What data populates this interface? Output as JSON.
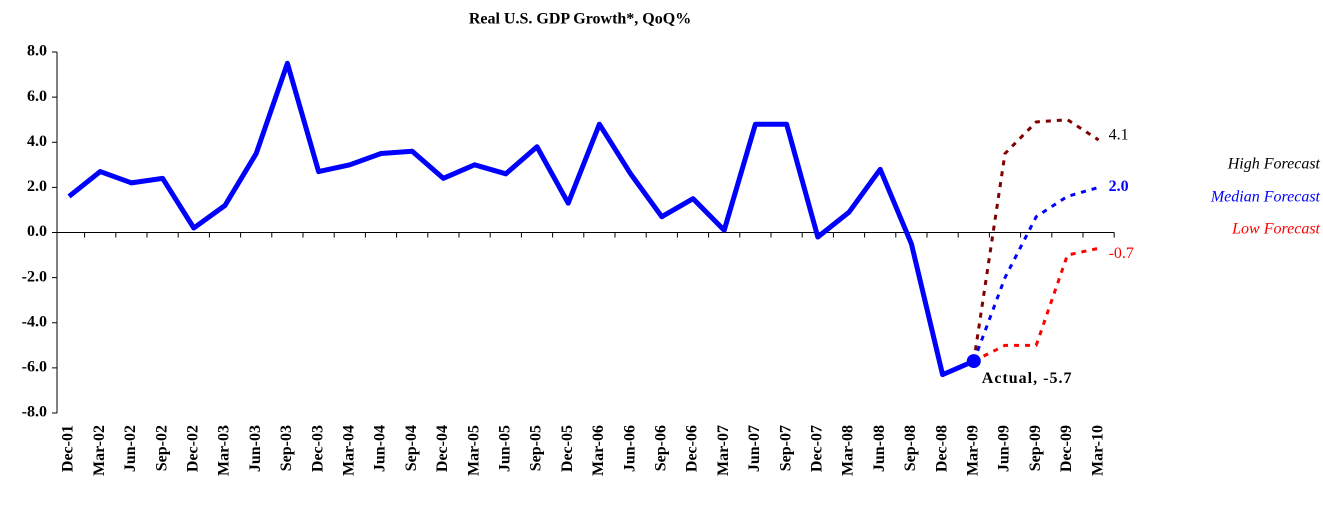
{
  "chart_data": {
    "type": "line",
    "title": "Real U.S. GDP Growth*, QoQ%",
    "categories": [
      "Dec-01",
      "Mar-02",
      "Jun-02",
      "Sep-02",
      "Dec-02",
      "Mar-03",
      "Jun-03",
      "Sep-03",
      "Dec-03",
      "Mar-04",
      "Jun-04",
      "Sep-04",
      "Dec-04",
      "Mar-05",
      "Jun-05",
      "Sep-05",
      "Dec-05",
      "Mar-06",
      "Jun-06",
      "Sep-06",
      "Dec-06",
      "Mar-07",
      "Jun-07",
      "Sep-07",
      "Dec-07",
      "Mar-08",
      "Jun-08",
      "Sep-08",
      "Dec-08",
      "Mar-09",
      "Jun-09",
      "Sep-09",
      "Dec-09",
      "Mar-10"
    ],
    "series": [
      {
        "color": "#0000ff",
        "style": "solid",
        "values": [
          1.6,
          2.7,
          2.2,
          2.4,
          0.2,
          1.2,
          3.5,
          7.5,
          2.7,
          3.0,
          3.5,
          3.6,
          2.4,
          3.0,
          2.6,
          3.8,
          1.3,
          4.8,
          2.6,
          0.7,
          1.5,
          0.1,
          4.8,
          4.8,
          -0.2,
          0.9,
          2.8,
          -0.5,
          -6.3,
          -5.7,
          null,
          null,
          null,
          null
        ]
      },
      {
        "name": "High Forecast",
        "color": "#800000",
        "style": "dotted",
        "values": [
          null,
          null,
          null,
          null,
          null,
          null,
          null,
          null,
          null,
          null,
          null,
          null,
          null,
          null,
          null,
          null,
          null,
          null,
          null,
          null,
          null,
          null,
          null,
          null,
          null,
          null,
          null,
          null,
          null,
          -5.7,
          3.5,
          4.9,
          5.0,
          4.1
        ],
        "value_labels": [
          null,
          null,
          null,
          null,
          null,
          null,
          null,
          null,
          null,
          null,
          null,
          null,
          null,
          null,
          null,
          null,
          null,
          null,
          null,
          null,
          null,
          null,
          null,
          null,
          null,
          null,
          null,
          null,
          null,
          null,
          null,
          null,
          null,
          "4.1"
        ]
      },
      {
        "name": "Median Forecast",
        "color": "#0000ff",
        "style": "dotted",
        "values": [
          null,
          null,
          null,
          null,
          null,
          null,
          null,
          null,
          null,
          null,
          null,
          null,
          null,
          null,
          null,
          null,
          null,
          null,
          null,
          null,
          null,
          null,
          null,
          null,
          null,
          null,
          null,
          null,
          null,
          -5.7,
          -2.0,
          0.7,
          1.6,
          2.0
        ],
        "value_labels": [
          null,
          null,
          null,
          null,
          null,
          null,
          null,
          null,
          null,
          null,
          null,
          null,
          null,
          null,
          null,
          null,
          null,
          null,
          null,
          null,
          null,
          null,
          null,
          null,
          null,
          null,
          null,
          null,
          null,
          null,
          null,
          null,
          null,
          "2.0"
        ]
      },
      {
        "name": "Low Forecast",
        "color": "#ff0000",
        "style": "dotted",
        "values": [
          null,
          null,
          null,
          null,
          null,
          null,
          null,
          null,
          null,
          null,
          null,
          null,
          null,
          null,
          null,
          null,
          null,
          null,
          null,
          null,
          null,
          null,
          null,
          null,
          null,
          null,
          null,
          null,
          null,
          -5.7,
          -5.0,
          -5.0,
          -1.0,
          -0.7
        ],
        "value_labels": [
          null,
          null,
          null,
          null,
          null,
          null,
          null,
          null,
          null,
          null,
          null,
          null,
          null,
          null,
          null,
          null,
          null,
          null,
          null,
          null,
          null,
          null,
          null,
          null,
          null,
          null,
          null,
          null,
          null,
          null,
          null,
          null,
          null,
          "-0.7"
        ]
      }
    ],
    "annotation": "Actual, -5.7",
    "ylim": [
      -8,
      8
    ],
    "yticks": [
      {
        "value": -8,
        "label": "-8.0"
      },
      {
        "value": -6,
        "label": "-6.0"
      },
      {
        "value": -4,
        "label": "-4.0"
      },
      {
        "value": -2,
        "label": "-2.0"
      },
      {
        "value": 0,
        "label": "0.0"
      },
      {
        "value": 2,
        "label": "2.0"
      },
      {
        "value": 4,
        "label": "4.0"
      },
      {
        "value": 6,
        "label": "6.0"
      },
      {
        "value": 8,
        "label": "8.0"
      }
    ],
    "grid": false
  }
}
